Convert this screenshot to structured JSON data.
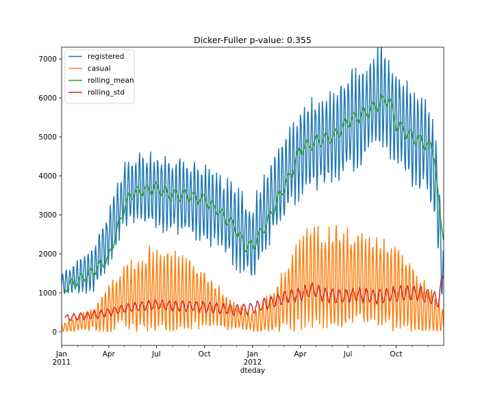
{
  "chart_data": {
    "type": "line",
    "title": "Dicker-Fuller p-value: 0.355",
    "xlabel": "dteday",
    "ylabel": "",
    "ylim": [
      -350,
      7300
    ],
    "y_ticks": [
      0,
      1000,
      2000,
      3000,
      4000,
      5000,
      6000,
      7000
    ],
    "x_range_days": [
      0,
      730
    ],
    "x_ticks": [
      {
        "day": 0,
        "label": "Jan",
        "sub": "2011"
      },
      {
        "day": 90,
        "label": "Apr",
        "sub": ""
      },
      {
        "day": 181,
        "label": "Jul",
        "sub": ""
      },
      {
        "day": 273,
        "label": "Oct",
        "sub": ""
      },
      {
        "day": 365,
        "label": "Jan",
        "sub": "2012"
      },
      {
        "day": 456,
        "label": "Apr",
        "sub": ""
      },
      {
        "day": 547,
        "label": "Jul",
        "sub": ""
      },
      {
        "day": 639,
        "label": "Oct",
        "sub": ""
      }
    ],
    "legend_position": "top-left",
    "grid": false,
    "series": [
      {
        "name": "registered",
        "color": "#1f77b4",
        "base": [
          [
            0,
            1200
          ],
          [
            30,
            1400
          ],
          [
            60,
            1600
          ],
          [
            90,
            2400
          ],
          [
            120,
            3500
          ],
          [
            150,
            3700
          ],
          [
            181,
            3600
          ],
          [
            210,
            3500
          ],
          [
            240,
            3400
          ],
          [
            273,
            3300
          ],
          [
            300,
            3100
          ],
          [
            330,
            2700
          ],
          [
            365,
            2300
          ],
          [
            380,
            2800
          ],
          [
            400,
            3400
          ],
          [
            420,
            3800
          ],
          [
            456,
            4600
          ],
          [
            490,
            4900
          ],
          [
            520,
            5000
          ],
          [
            547,
            5300
          ],
          [
            580,
            5600
          ],
          [
            610,
            6000
          ],
          [
            639,
            5500
          ],
          [
            670,
            5000
          ],
          [
            700,
            4700
          ],
          [
            715,
            4000
          ],
          [
            730,
            1200
          ]
        ],
        "amp": [
          [
            0,
            250
          ],
          [
            100,
            700
          ],
          [
            200,
            900
          ],
          [
            365,
            900
          ],
          [
            456,
            1000
          ],
          [
            600,
            1200
          ],
          [
            730,
            1000
          ]
        ],
        "period": 7,
        "min": 300
      },
      {
        "name": "casual",
        "color": "#ff7f0e",
        "base": [
          [
            0,
            100
          ],
          [
            40,
            250
          ],
          [
            70,
            400
          ],
          [
            90,
            600
          ],
          [
            120,
            900
          ],
          [
            150,
            1000
          ],
          [
            181,
            1000
          ],
          [
            220,
            950
          ],
          [
            260,
            900
          ],
          [
            290,
            700
          ],
          [
            330,
            400
          ],
          [
            365,
            250
          ],
          [
            400,
            450
          ],
          [
            430,
            900
          ],
          [
            456,
            1300
          ],
          [
            500,
            1400
          ],
          [
            547,
            1350
          ],
          [
            600,
            1300
          ],
          [
            639,
            1100
          ],
          [
            680,
            700
          ],
          [
            730,
            300
          ]
        ],
        "amp": [
          [
            0,
            100
          ],
          [
            60,
            250
          ],
          [
            90,
            600
          ],
          [
            150,
            900
          ],
          [
            181,
            1100
          ],
          [
            270,
            700
          ],
          [
            330,
            300
          ],
          [
            365,
            200
          ],
          [
            430,
            800
          ],
          [
            456,
            1100
          ],
          [
            530,
            1200
          ],
          [
            639,
            1000
          ],
          [
            700,
            600
          ],
          [
            730,
            300
          ]
        ],
        "period": 7,
        "min": 0
      },
      {
        "name": "rolling_mean",
        "color": "#2ca02c",
        "base": [
          [
            7,
            1150
          ],
          [
            30,
            1300
          ],
          [
            60,
            1550
          ],
          [
            90,
            1900
          ],
          [
            110,
            2800
          ],
          [
            130,
            3500
          ],
          [
            150,
            3600
          ],
          [
            181,
            3700
          ],
          [
            210,
            3500
          ],
          [
            240,
            3500
          ],
          [
            273,
            3400
          ],
          [
            300,
            3100
          ],
          [
            330,
            2700
          ],
          [
            350,
            2200
          ],
          [
            365,
            2200
          ],
          [
            380,
            2500
          ],
          [
            400,
            3000
          ],
          [
            420,
            3600
          ],
          [
            440,
            4100
          ],
          [
            456,
            4700
          ],
          [
            490,
            4900
          ],
          [
            520,
            5000
          ],
          [
            547,
            5400
          ],
          [
            580,
            5600
          ],
          [
            610,
            5900
          ],
          [
            625,
            6000
          ],
          [
            639,
            5300
          ],
          [
            670,
            5000
          ],
          [
            700,
            4800
          ],
          [
            712,
            4600
          ],
          [
            722,
            3000
          ],
          [
            730,
            2500
          ]
        ],
        "amp": [
          [
            0,
            120
          ],
          [
            730,
            160
          ]
        ],
        "period": 18,
        "min": 500
      },
      {
        "name": "rolling_std",
        "color": "#d62728",
        "base": [
          [
            7,
            350
          ],
          [
            40,
            400
          ],
          [
            70,
            450
          ],
          [
            90,
            500
          ],
          [
            120,
            600
          ],
          [
            150,
            650
          ],
          [
            181,
            700
          ],
          [
            220,
            650
          ],
          [
            260,
            650
          ],
          [
            300,
            600
          ],
          [
            330,
            550
          ],
          [
            365,
            600
          ],
          [
            400,
            750
          ],
          [
            430,
            900
          ],
          [
            456,
            950
          ],
          [
            480,
            1100
          ],
          [
            500,
            950
          ],
          [
            530,
            900
          ],
          [
            560,
            950
          ],
          [
            600,
            900
          ],
          [
            630,
            950
          ],
          [
            650,
            1000
          ],
          [
            680,
            1000
          ],
          [
            700,
            900
          ],
          [
            720,
            800
          ],
          [
            730,
            1500
          ]
        ],
        "amp": [
          [
            0,
            80
          ],
          [
            456,
            150
          ],
          [
            730,
            180
          ]
        ],
        "period": 13,
        "min": 150
      }
    ]
  }
}
